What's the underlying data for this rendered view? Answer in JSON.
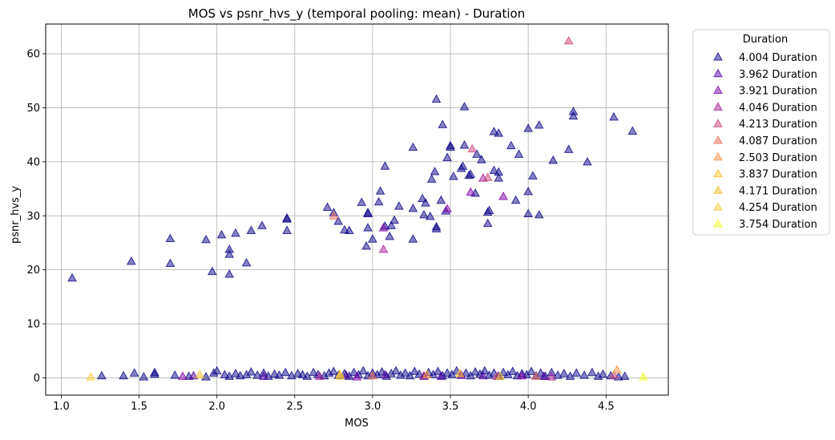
{
  "chart_data": {
    "type": "scatter",
    "title": "MOS vs psnr_hvs_y (temporal pooling: mean) - Duration",
    "xlabel": "MOS",
    "ylabel": "psnr_hvs_y",
    "xlim": [
      0.9,
      4.9
    ],
    "ylim": [
      -3.2,
      65.5
    ],
    "xticks": [
      1.0,
      1.5,
      2.0,
      2.5,
      3.0,
      3.5,
      4.0,
      4.5
    ],
    "xtick_labels": [
      "1.0",
      "1.5",
      "2.0",
      "2.5",
      "3.0",
      "3.5",
      "4.0",
      "4.5"
    ],
    "yticks": [
      0,
      10,
      20,
      30,
      40,
      50,
      60
    ],
    "ytick_labels": [
      "0",
      "10",
      "20",
      "30",
      "40",
      "50",
      "60"
    ],
    "grid": true,
    "marker": "triangle",
    "legend": {
      "title": "Duration",
      "placement": "outside-upper-right"
    },
    "series": [
      {
        "name": "4.004 Duration",
        "color": "#0d0887",
        "points": [
          [
            1.07,
            18.5
          ],
          [
            1.45,
            21.6
          ],
          [
            1.7,
            21.2
          ],
          [
            1.7,
            25.8
          ],
          [
            1.93,
            25.6
          ],
          [
            1.97,
            19.7
          ],
          [
            2.03,
            26.5
          ],
          [
            2.08,
            22.9
          ],
          [
            2.08,
            23.8
          ],
          [
            2.08,
            19.2
          ],
          [
            2.12,
            26.8
          ],
          [
            2.19,
            21.3
          ],
          [
            2.22,
            27.3
          ],
          [
            2.29,
            28.2
          ],
          [
            2.45,
            27.3
          ],
          [
            2.45,
            29.4
          ],
          [
            2.45,
            29.6
          ],
          [
            2.71,
            31.6
          ],
          [
            2.75,
            30.6
          ],
          [
            2.78,
            29.0
          ],
          [
            2.82,
            27.4
          ],
          [
            2.85,
            27.3
          ],
          [
            2.93,
            32.5
          ],
          [
            2.96,
            24.4
          ],
          [
            2.97,
            27.8
          ],
          [
            2.97,
            30.4
          ],
          [
            2.97,
            30.6
          ],
          [
            3.0,
            25.7
          ],
          [
            3.04,
            32.6
          ],
          [
            3.05,
            34.6
          ],
          [
            3.08,
            28.1
          ],
          [
            3.08,
            39.2
          ],
          [
            3.11,
            26.2
          ],
          [
            3.12,
            28.2
          ],
          [
            3.14,
            29.2
          ],
          [
            3.17,
            31.8
          ],
          [
            3.26,
            25.7
          ],
          [
            3.26,
            31.4
          ],
          [
            3.26,
            42.7
          ],
          [
            3.32,
            33.2
          ],
          [
            3.33,
            30.2
          ],
          [
            3.34,
            32.4
          ],
          [
            3.37,
            29.9
          ],
          [
            3.38,
            36.8
          ],
          [
            3.4,
            38.2
          ],
          [
            3.41,
            27.6
          ],
          [
            3.41,
            28.0
          ],
          [
            3.41,
            51.6
          ],
          [
            3.44,
            32.9
          ],
          [
            3.45,
            46.9
          ],
          [
            3.47,
            30.9
          ],
          [
            3.48,
            40.8
          ],
          [
            3.5,
            42.7
          ],
          [
            3.5,
            43.0
          ],
          [
            3.52,
            37.3
          ],
          [
            3.57,
            38.8
          ],
          [
            3.58,
            39.2
          ],
          [
            3.59,
            43.1
          ],
          [
            3.59,
            50.2
          ],
          [
            3.62,
            37.5
          ],
          [
            3.63,
            37.7
          ],
          [
            3.66,
            34.2
          ],
          [
            3.67,
            41.4
          ],
          [
            3.7,
            40.4
          ],
          [
            3.74,
            28.6
          ],
          [
            3.74,
            30.7
          ],
          [
            3.75,
            31.0
          ],
          [
            3.78,
            38.4
          ],
          [
            3.78,
            45.6
          ],
          [
            3.81,
            37.0
          ],
          [
            3.81,
            38.1
          ],
          [
            3.81,
            45.3
          ],
          [
            3.89,
            43.0
          ],
          [
            3.92,
            32.9
          ],
          [
            3.94,
            41.4
          ],
          [
            4.0,
            30.4
          ],
          [
            4.0,
            34.5
          ],
          [
            4.0,
            46.2
          ],
          [
            4.03,
            37.4
          ],
          [
            4.07,
            30.2
          ],
          [
            4.07,
            46.8
          ],
          [
            4.16,
            40.3
          ],
          [
            4.26,
            42.3
          ],
          [
            4.29,
            48.5
          ],
          [
            4.29,
            49.3
          ],
          [
            4.38,
            40.0
          ],
          [
            4.55,
            48.3
          ],
          [
            4.67,
            45.7
          ],
          [
            1.26,
            0.4
          ],
          [
            1.4,
            0.4
          ],
          [
            1.47,
            0.9
          ],
          [
            1.53,
            0.2
          ],
          [
            1.6,
            0.7
          ],
          [
            1.6,
            1.0
          ],
          [
            1.73,
            0.5
          ],
          [
            1.82,
            0.3
          ],
          [
            1.93,
            0.2
          ],
          [
            1.98,
            0.9
          ],
          [
            2.0,
            1.3
          ],
          [
            2.05,
            0.6
          ],
          [
            2.08,
            0.3
          ],
          [
            2.12,
            0.8
          ],
          [
            2.15,
            0.4
          ],
          [
            2.19,
            0.6
          ],
          [
            2.22,
            1.1
          ],
          [
            2.26,
            0.5
          ],
          [
            2.3,
            0.9
          ],
          [
            2.33,
            0.3
          ],
          [
            2.37,
            0.7
          ],
          [
            2.4,
            0.5
          ],
          [
            2.44,
            1.0
          ],
          [
            2.48,
            0.4
          ],
          [
            2.52,
            0.8
          ],
          [
            2.55,
            0.6
          ],
          [
            2.58,
            0.3
          ],
          [
            2.62,
            1.0
          ],
          [
            2.65,
            0.6
          ],
          [
            2.69,
            0.4
          ],
          [
            2.72,
            0.9
          ],
          [
            2.75,
            1.2
          ],
          [
            2.78,
            0.5
          ],
          [
            2.82,
            0.8
          ],
          [
            2.85,
            0.3
          ],
          [
            2.88,
            1.0
          ],
          [
            2.91,
            0.6
          ],
          [
            2.94,
            1.3
          ],
          [
            2.97,
            0.4
          ],
          [
            3.0,
            0.9
          ],
          [
            3.03,
            0.6
          ],
          [
            3.06,
            1.1
          ],
          [
            3.09,
            0.3
          ],
          [
            3.12,
            0.8
          ],
          [
            3.15,
            1.3
          ],
          [
            3.18,
            0.5
          ],
          [
            3.21,
            0.9
          ],
          [
            3.24,
            0.4
          ],
          [
            3.27,
            1.2
          ],
          [
            3.3,
            0.7
          ],
          [
            3.33,
            0.3
          ],
          [
            3.36,
            1.0
          ],
          [
            3.39,
            0.6
          ],
          [
            3.42,
            1.2
          ],
          [
            3.45,
            0.4
          ],
          [
            3.48,
            0.9
          ],
          [
            3.51,
            0.6
          ],
          [
            3.54,
            1.3
          ],
          [
            3.57,
            0.5
          ],
          [
            3.6,
            0.9
          ],
          [
            3.63,
            0.4
          ],
          [
            3.66,
            1.1
          ],
          [
            3.69,
            0.7
          ],
          [
            3.72,
            1.3
          ],
          [
            3.75,
            0.5
          ],
          [
            3.78,
            0.9
          ],
          [
            3.81,
            0.3
          ],
          [
            3.84,
            1.0
          ],
          [
            3.87,
            0.6
          ],
          [
            3.9,
            1.2
          ],
          [
            3.93,
            0.4
          ],
          [
            3.96,
            0.8
          ],
          [
            3.99,
            0.6
          ],
          [
            4.02,
            1.2
          ],
          [
            4.05,
            0.4
          ],
          [
            4.08,
            0.9
          ],
          [
            4.11,
            0.3
          ],
          [
            4.15,
            1.0
          ],
          [
            4.19,
            0.5
          ],
          [
            4.23,
            0.8
          ],
          [
            4.27,
            0.3
          ],
          [
            4.31,
            0.9
          ],
          [
            4.36,
            0.5
          ],
          [
            4.41,
            1.0
          ],
          [
            4.45,
            0.3
          ],
          [
            4.48,
            0.7
          ],
          [
            4.53,
            0.4
          ],
          [
            4.58,
            0.2
          ],
          [
            4.62,
            0.3
          ]
        ]
      },
      {
        "name": "3.962 Duration",
        "color": "#5002a2",
        "points": [
          [
            1.85,
            0.4
          ],
          [
            2.3,
            0.3
          ],
          [
            2.83,
            0.5
          ],
          [
            3.08,
            0.6
          ],
          [
            3.44,
            0.3
          ],
          [
            3.71,
            0.4
          ],
          [
            4.1,
            0.3
          ]
        ]
      },
      {
        "name": "3.921 Duration",
        "color": "#7e03a8",
        "points": [
          [
            3.07,
            27.8
          ],
          [
            3.48,
            31.3
          ],
          [
            3.63,
            34.4
          ],
          [
            3.84,
            33.6
          ],
          [
            1.78,
            0.3
          ],
          [
            2.9,
            0.2
          ],
          [
            3.57,
            0.5
          ],
          [
            3.96,
            0.4
          ]
        ]
      },
      {
        "name": "4.046 Duration",
        "color": "#a82296",
        "points": [
          [
            3.07,
            23.8
          ],
          [
            3.71,
            37.0
          ],
          [
            2.66,
            0.3
          ],
          [
            3.33,
            0.4
          ],
          [
            4.15,
            0.2
          ]
        ]
      },
      {
        "name": "4.213 Duration",
        "color": "#cb4679",
        "points": [
          [
            4.26,
            62.4
          ],
          [
            3.64,
            42.4
          ],
          [
            3.74,
            37.1
          ],
          [
            3.8,
            0.3
          ],
          [
            4.55,
            0.5
          ]
        ]
      },
      {
        "name": "4.087 Duration",
        "color": "#e56b5d",
        "points": [
          [
            2.75,
            30.0
          ],
          [
            3.0,
            0.4
          ],
          [
            4.05,
            0.3
          ]
        ]
      },
      {
        "name": "2.503 Duration",
        "color": "#f89441",
        "points": [
          [
            4.57,
            1.5
          ],
          [
            3.35,
            0.6
          ]
        ]
      },
      {
        "name": "3.837 Duration",
        "color": "#fdc328",
        "points": [
          [
            2.79,
            0.7
          ],
          [
            3.56,
            0.8
          ]
        ]
      },
      {
        "name": "4.171 Duration",
        "color": "#f0c02e",
        "points": [
          [
            1.89,
            0.6
          ],
          [
            3.82,
            0.3
          ]
        ]
      },
      {
        "name": "4.254 Duration",
        "color": "#f7d13d",
        "points": [
          [
            1.19,
            0.2
          ],
          [
            2.79,
            0.3
          ]
        ]
      },
      {
        "name": "3.754 Duration",
        "color": "#f0f921",
        "points": [
          [
            4.74,
            0.2
          ]
        ]
      }
    ]
  }
}
